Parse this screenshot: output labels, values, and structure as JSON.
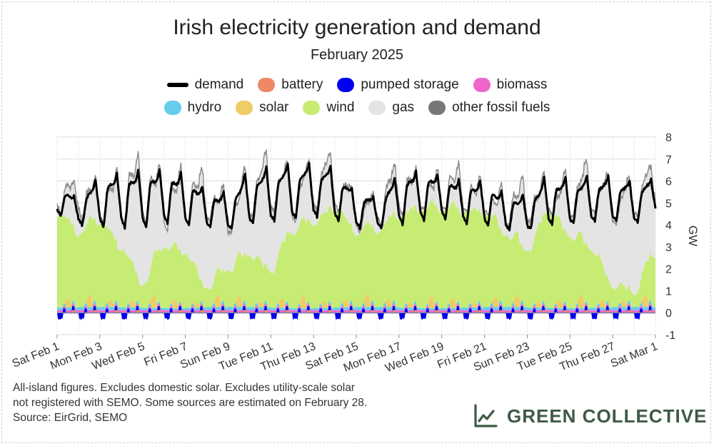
{
  "colors": {
    "demand": "#000000",
    "battery": "#ee8866",
    "pumped_storage": "#0000ee",
    "biomass": "#ee66cc",
    "hydro": "#66ccee",
    "solar": "#eecc66",
    "wind": "#c6ec73",
    "gas": "#e4e4e4",
    "other_fossil": "#777777",
    "brand": "#3d5a45"
  },
  "legend": {
    "row1": [
      {
        "key": "demand",
        "label": "demand",
        "color": "#000000",
        "style": "line"
      },
      {
        "key": "battery",
        "label": "battery",
        "color": "#ee8866",
        "style": "area"
      },
      {
        "key": "pumped_storage",
        "label": "pumped storage",
        "color": "#0000ee",
        "style": "area"
      },
      {
        "key": "biomass",
        "label": "biomass",
        "color": "#ee66cc",
        "style": "area"
      }
    ],
    "row2": [
      {
        "key": "hydro",
        "label": "hydro",
        "color": "#66ccee",
        "style": "area"
      },
      {
        "key": "solar",
        "label": "solar",
        "color": "#eecc66",
        "style": "area"
      },
      {
        "key": "wind",
        "label": "wind",
        "color": "#c6ec73",
        "style": "area"
      },
      {
        "key": "gas",
        "label": "gas",
        "color": "#e4e4e4",
        "style": "area"
      },
      {
        "key": "other_fossil",
        "label": "other fossil fuels",
        "color": "#777777",
        "style": "area"
      }
    ]
  },
  "chart_data": {
    "type": "area",
    "title": "Irish electricity generation and demand",
    "subtitle": "February 2025",
    "ylabel": "GW",
    "ylim": [
      -1,
      8
    ],
    "yticks": [
      -1,
      0,
      1,
      2,
      3,
      4,
      5,
      6,
      7,
      8
    ],
    "xlim_days": [
      0,
      28
    ],
    "x_unit": "date",
    "x_tick_labels": [
      "Sat Feb 1",
      "Mon Feb 3",
      "Wed Feb 5",
      "Fri Feb 7",
      "Sun Feb 9",
      "Tue Feb 11",
      "Thu Feb 13",
      "Sat Feb 15",
      "Mon Feb 17",
      "Wed Feb 19",
      "Fri Feb 21",
      "Sun Feb 23",
      "Tue Feb 25",
      "Thu Feb 27",
      "Sat Mar 1"
    ],
    "grid": true,
    "legend_position": "top",
    "daily_dates": [
      "Feb 1",
      "Feb 2",
      "Feb 3",
      "Feb 4",
      "Feb 5",
      "Feb 6",
      "Feb 7",
      "Feb 8",
      "Feb 9",
      "Feb 10",
      "Feb 11",
      "Feb 12",
      "Feb 13",
      "Feb 14",
      "Feb 15",
      "Feb 16",
      "Feb 17",
      "Feb 18",
      "Feb 19",
      "Feb 20",
      "Feb 21",
      "Feb 22",
      "Feb 23",
      "Feb 24",
      "Feb 25",
      "Feb 26",
      "Feb 27",
      "Feb 28",
      "Mar 1"
    ],
    "wind_daily_gw": [
      4.2,
      3.3,
      3.8,
      2.6,
      1.0,
      2.7,
      2.4,
      0.8,
      1.6,
      2.3,
      1.6,
      3.4,
      3.8,
      4.4,
      3.3,
      3.4,
      4.1,
      4.4,
      4.4,
      4.3,
      4.2,
      3.2,
      2.5,
      4.3,
      3.2,
      2.6,
      0.9,
      0.6,
      2.3
    ],
    "demand_min_gw": [
      4.4,
      4.0,
      3.9,
      3.9,
      3.9,
      4.1,
      4.0,
      3.9,
      3.8,
      4.0,
      4.1,
      4.2,
      4.3,
      4.1,
      3.8,
      3.8,
      4.0,
      4.2,
      4.3,
      4.1,
      4.0,
      3.8,
      3.8,
      4.0,
      4.0,
      4.1,
      4.1,
      4.0,
      4.5
    ],
    "demand_max_gw": [
      5.9,
      5.3,
      6.2,
      6.4,
      6.5,
      6.5,
      6.3,
      5.6,
      5.4,
      6.4,
      6.6,
      6.8,
      6.8,
      6.7,
      5.6,
      5.3,
      6.3,
      6.5,
      6.3,
      6.0,
      6.0,
      5.4,
      5.3,
      6.2,
      6.1,
      6.2,
      6.2,
      6.0,
      6.1
    ],
    "series": [
      {
        "key": "demand",
        "name": "demand",
        "kind": "line"
      },
      {
        "key": "battery",
        "name": "battery",
        "kind": "stacked-area"
      },
      {
        "key": "pumped_storage",
        "name": "pumped storage",
        "kind": "stacked-area"
      },
      {
        "key": "biomass",
        "name": "biomass",
        "kind": "stacked-area"
      },
      {
        "key": "hydro",
        "name": "hydro",
        "kind": "stacked-area"
      },
      {
        "key": "solar",
        "name": "solar",
        "kind": "stacked-area"
      },
      {
        "key": "wind",
        "name": "wind",
        "kind": "stacked-area"
      },
      {
        "key": "gas",
        "name": "gas",
        "kind": "stacked-area"
      },
      {
        "key": "other_fossil",
        "name": "other fossil fuels",
        "kind": "stacked-area"
      }
    ]
  },
  "footnote": {
    "line1": "All-island figures. Excludes domestic solar. Excludes utility-scale solar",
    "line2": "not registered with SEMO. Some sources are estimated on February 28.",
    "line3": "Source: EirGrid, SEMO"
  },
  "brand": {
    "name": "GREEN COLLECTIVE",
    "icon": "line-chart-icon"
  }
}
